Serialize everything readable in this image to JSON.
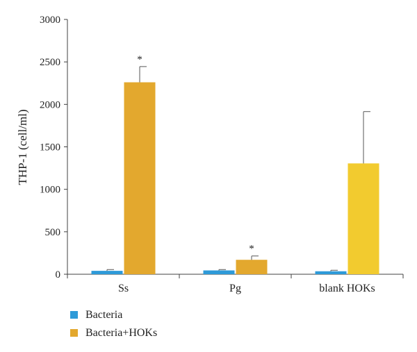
{
  "chart_data": {
    "type": "bar",
    "ylabel": "THP-1 (cell/ml)",
    "xlabel": "",
    "ylim": [
      0,
      3000
    ],
    "yticks": [
      0,
      500,
      1000,
      1500,
      2000,
      2500,
      3000
    ],
    "categories": [
      "Ss",
      "Pg",
      "blank HOKs"
    ],
    "series": [
      {
        "name": "Bacteria",
        "color": "#2e9ad8",
        "values": [
          40,
          45,
          35
        ],
        "errors": [
          15,
          10,
          12
        ]
      },
      {
        "name": "Bacteria+HOKs",
        "color": "#e3a82e",
        "bar_colors": [
          "#e3a82e",
          "#e3a82e",
          "#f2cb2f"
        ],
        "values": [
          2260,
          170,
          1305
        ],
        "errors": [
          185,
          45,
          610
        ]
      }
    ],
    "annotations": [
      {
        "category_index": 0,
        "series_index": 1,
        "text": "*"
      },
      {
        "category_index": 1,
        "series_index": 1,
        "text": "*"
      }
    ],
    "legend_position": "bottom-left",
    "grid": false
  }
}
